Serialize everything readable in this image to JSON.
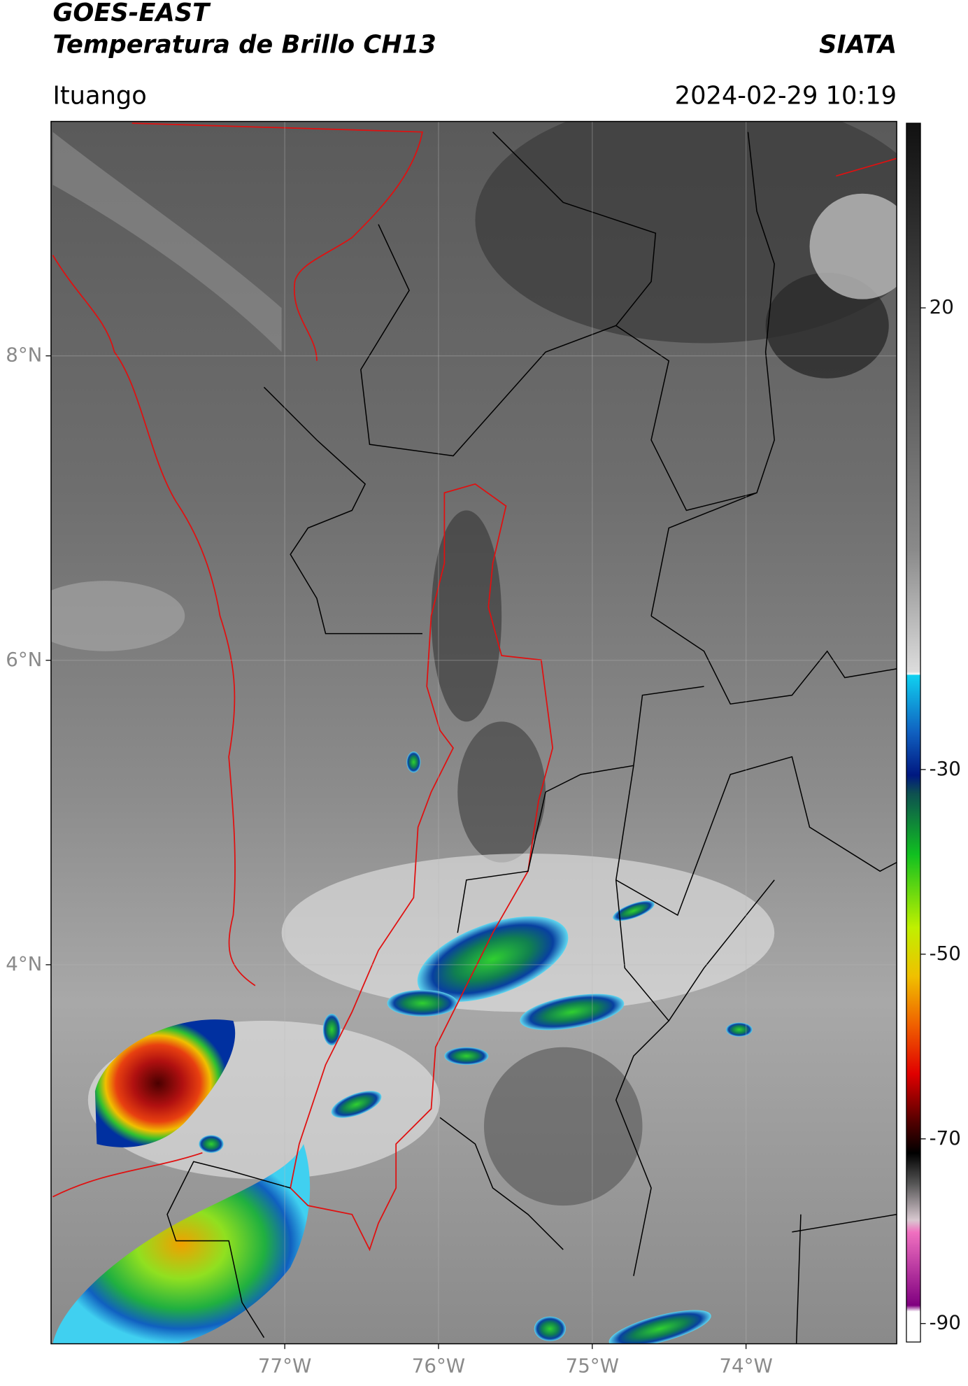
{
  "header": {
    "title": "GOES-EAST",
    "subtitle": "Temperatura de Brillo CH13",
    "brand": "SIATA",
    "location": "Ituango",
    "datetime": "2024-02-29 10:19"
  },
  "map": {
    "lon_range": [
      -78.52,
      -73.02
    ],
    "lat_range": [
      1.51,
      9.54
    ],
    "lon_ticks": [
      {
        "value": -77,
        "label": "77°W"
      },
      {
        "value": -76,
        "label": "76°W"
      },
      {
        "value": -75,
        "label": "75°W"
      },
      {
        "value": -74,
        "label": "74°W"
      }
    ],
    "lat_ticks": [
      {
        "value": 8,
        "label": "8°N"
      },
      {
        "value": 6,
        "label": "6°N"
      },
      {
        "value": 4,
        "label": "4°N"
      }
    ],
    "grid": true
  },
  "colorbar": {
    "range": [
      -92,
      40
    ],
    "ticks": [
      20,
      -30,
      -50,
      -70,
      -90
    ]
  }
}
